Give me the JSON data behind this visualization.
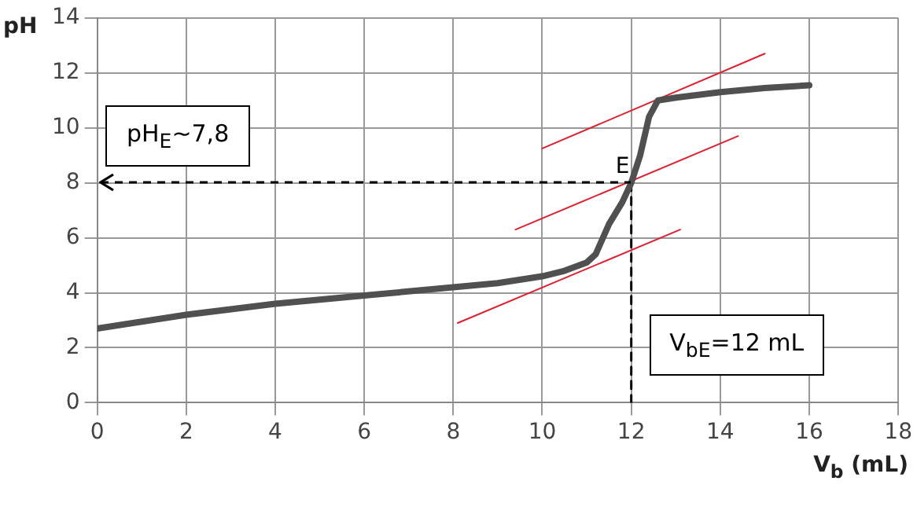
{
  "chart_data": {
    "type": "line",
    "xlabel": "V$_{b}$ (mL)",
    "ylabel": "pH",
    "xlim": [
      0,
      18
    ],
    "xticks": [
      0,
      2,
      4,
      6,
      8,
      10,
      12,
      14,
      16,
      18
    ],
    "ylim": [
      0,
      14
    ],
    "yticks": [
      0,
      2,
      4,
      6,
      8,
      10,
      12,
      14
    ],
    "grid": true,
    "legend": false,
    "marker": "none",
    "series": [
      {
        "color": "#505050",
        "x": [
          0,
          2,
          4,
          6,
          8,
          9,
          10,
          10.5,
          11,
          11.2,
          11.5,
          11.8,
          12,
          12.2,
          12.4,
          12.6,
          13,
          14,
          15,
          16
        ],
        "values": [
          2.7,
          3.2,
          3.6,
          3.9,
          4.2,
          4.35,
          4.6,
          4.8,
          5.1,
          5.4,
          6.5,
          7.3,
          8,
          9,
          10.4,
          11,
          11.1,
          11.3,
          11.45,
          11.55
        ]
      },
      {
        "color": "#e02030",
        "x": [
          10,
          15
        ],
        "values": [
          9.25,
          12.7
        ]
      },
      {
        "color": "#e02030",
        "x": [
          9.4,
          14.4
        ],
        "values": [
          6.3,
          9.7
        ]
      },
      {
        "color": "#e02030",
        "x": [
          8.1,
          13.1
        ],
        "values": [
          2.9,
          6.3
        ]
      },
      {
        "color": "#000000",
        "line_style": "dashed",
        "x": [
          12,
          12
        ],
        "values": [
          8,
          0
        ]
      }
    ],
    "annotations": [
      "pH$_{E}$~7,8",
      "V$_{bE}$=12 mL",
      {
        "text": "E",
        "x": 12,
        "y": 8
      }
    ]
  }
}
